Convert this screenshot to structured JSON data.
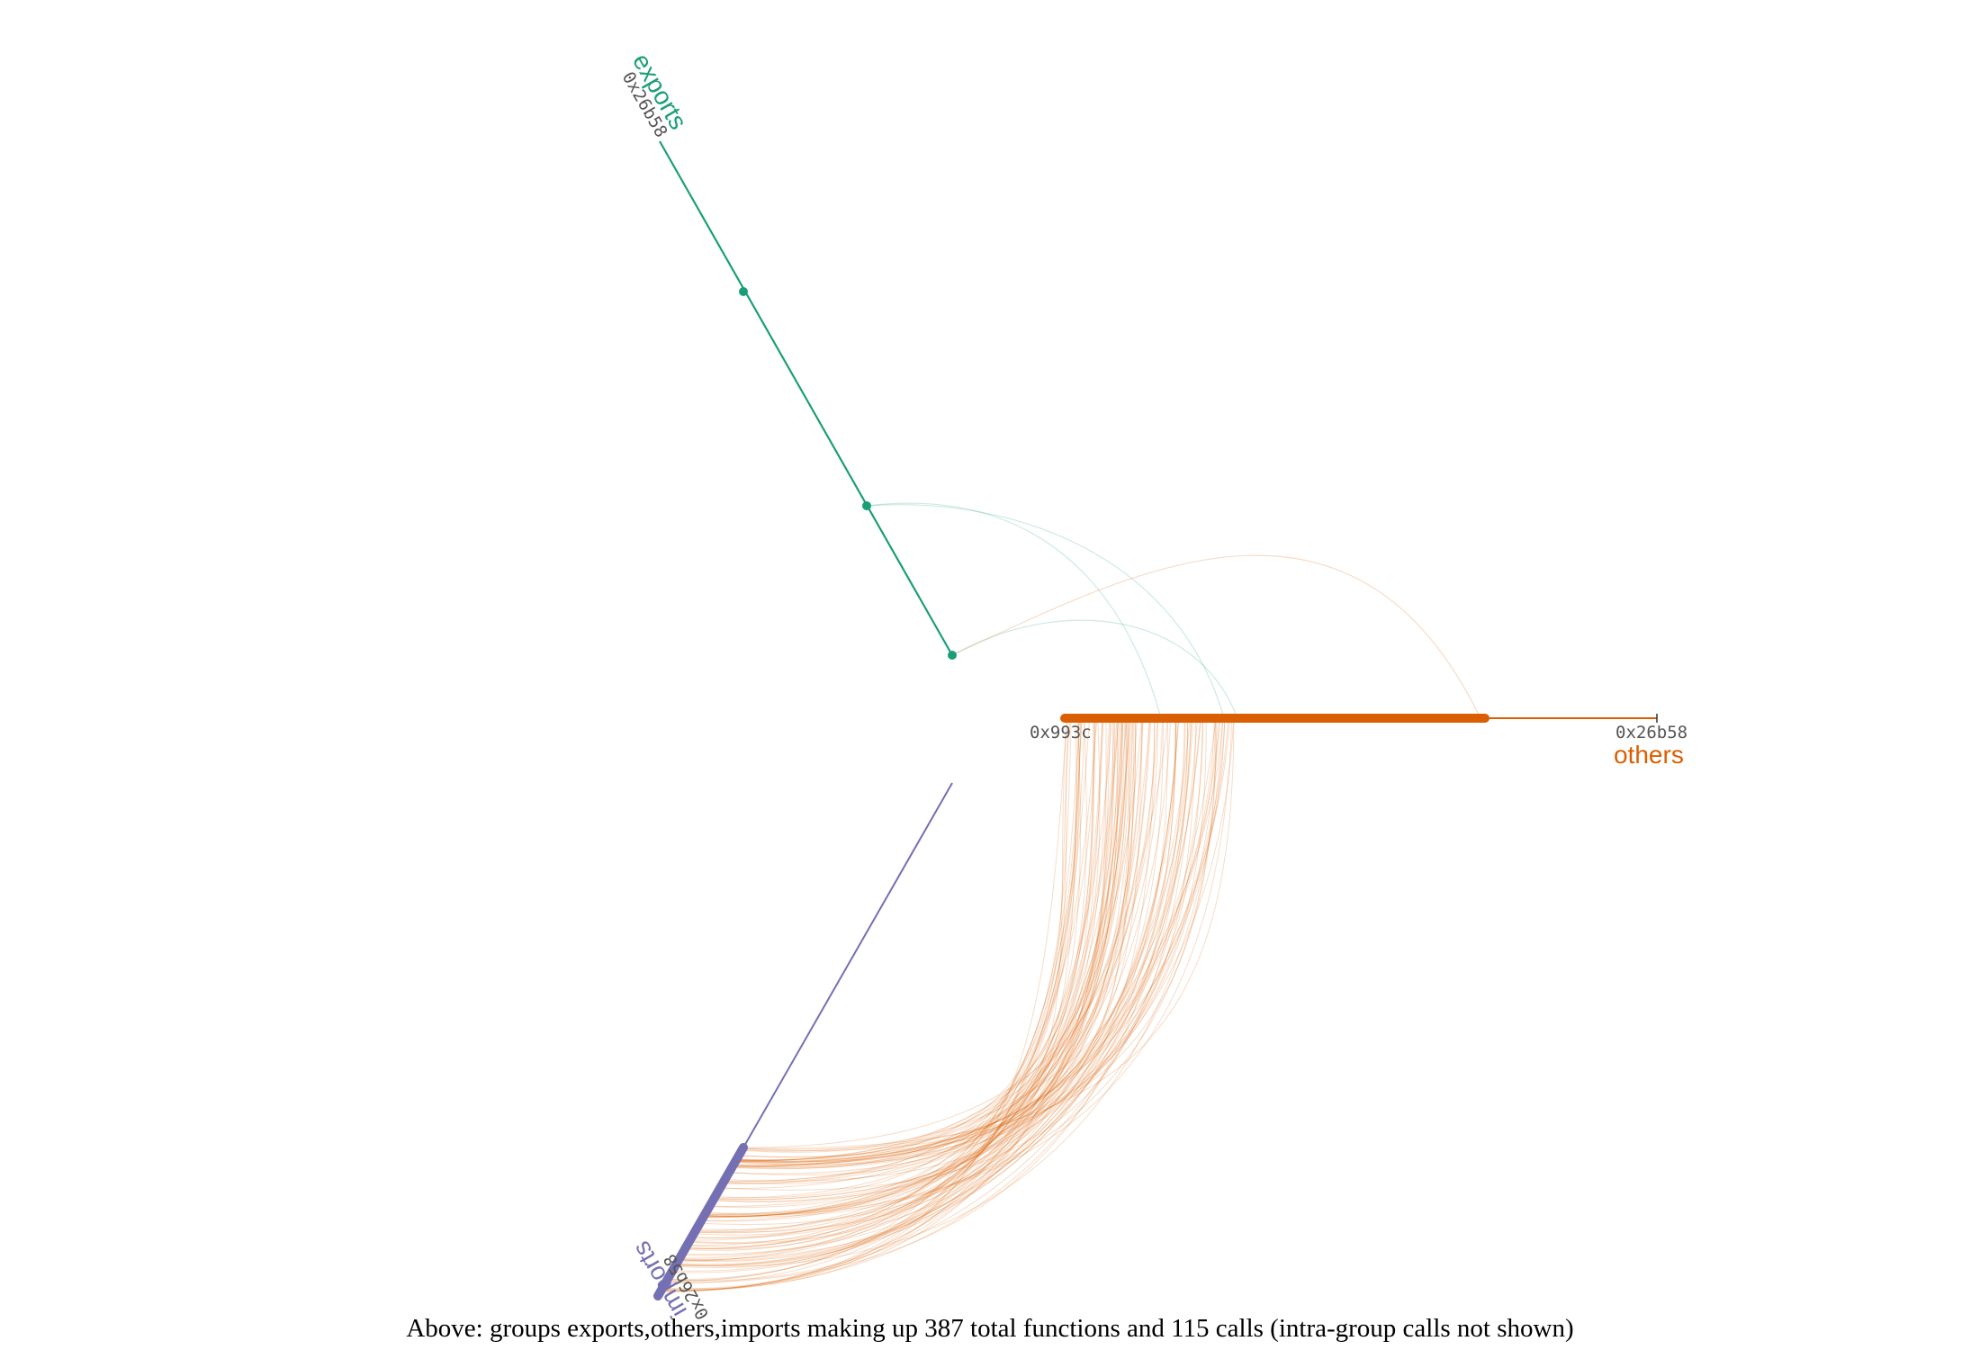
{
  "colors": {
    "exports": "#1b9e77",
    "others": "#d95f02",
    "imports": "#7570b3",
    "tick_text": "#555555"
  },
  "groups": {
    "exports": {
      "name": "exports",
      "tick_label": "0x26b58"
    },
    "others": {
      "name": "others",
      "start_label": "0x993c",
      "end_label": "0x26b58"
    },
    "imports": {
      "name": "imports",
      "tick_label": "0x26b58"
    }
  },
  "caption": "Above: groups exports,others,imports making up 387 total functions and 115 calls (intra-group calls not shown)"
}
